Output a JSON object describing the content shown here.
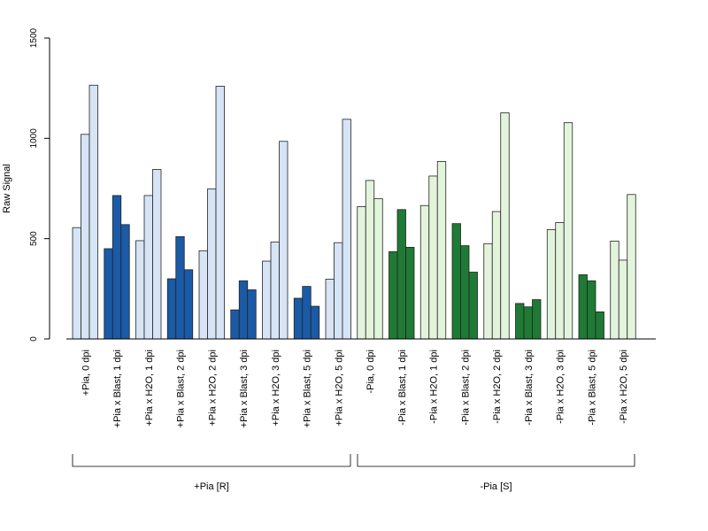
{
  "chart_data": {
    "type": "bar",
    "ylabel": "Raw Signal",
    "ylim": [
      0,
      1500
    ],
    "yticks": [
      "0",
      "500",
      "1000",
      "1500"
    ],
    "grid": false,
    "categories": [
      "+Pia, 0 dpi",
      "+Pia x Blast, 1 dpi",
      "+Pia x H2O, 1 dpi",
      "+Pia x Blast, 2 dpi",
      "+Pia x H2O, 2 dpi",
      "+Pia x Blast, 3 dpi",
      "+Pia x H2O, 3 dpi",
      "+Pia x Blast, 5 dpi",
      "+Pia x H2O, 5 dpi",
      "-Pia, 0 dpi",
      "-Pia x Blast, 1 dpi",
      "-Pia x H2O, 1 dpi",
      "-Pia x Blast, 2 dpi",
      "-Pia x H2O, 2 dpi",
      "-Pia x Blast, 3 dpi",
      "-Pia x H2O, 3 dpi",
      "-Pia x Blast, 5 dpi",
      "-Pia x H2O, 5 dpi"
    ],
    "replicates": [
      [
        555,
        1020,
        1265
      ],
      [
        450,
        715,
        570
      ],
      [
        490,
        715,
        845
      ],
      [
        300,
        510,
        345
      ],
      [
        440,
        748,
        1260
      ],
      [
        145,
        290,
        245
      ],
      [
        388,
        483,
        985
      ],
      [
        203,
        262,
        163
      ],
      [
        298,
        480,
        1095
      ],
      [
        660,
        790,
        700
      ],
      [
        435,
        645,
        457
      ],
      [
        665,
        812,
        885
      ],
      [
        575,
        465,
        333
      ],
      [
        475,
        635,
        1127
      ],
      [
        177,
        160,
        196
      ],
      [
        545,
        580,
        1078
      ],
      [
        320,
        290,
        135
      ],
      [
        488,
        393,
        720
      ]
    ],
    "bar_colors": [
      "#d6e4f5",
      "#1b5aa6",
      "#d6e4f5",
      "#1b5aa6",
      "#d6e4f5",
      "#1b5aa6",
      "#d6e4f5",
      "#1b5aa6",
      "#d6e4f5",
      "#e3f4dc",
      "#1f7a35",
      "#e3f4dc",
      "#1f7a35",
      "#e3f4dc",
      "#1f7a35",
      "#e3f4dc",
      "#1f7a35",
      "#e3f4dc"
    ],
    "groups": [
      {
        "label": "+Pia [R]",
        "start": 0,
        "end": 8
      },
      {
        "label": "-Pia [S]",
        "start": 9,
        "end": 17
      }
    ]
  }
}
